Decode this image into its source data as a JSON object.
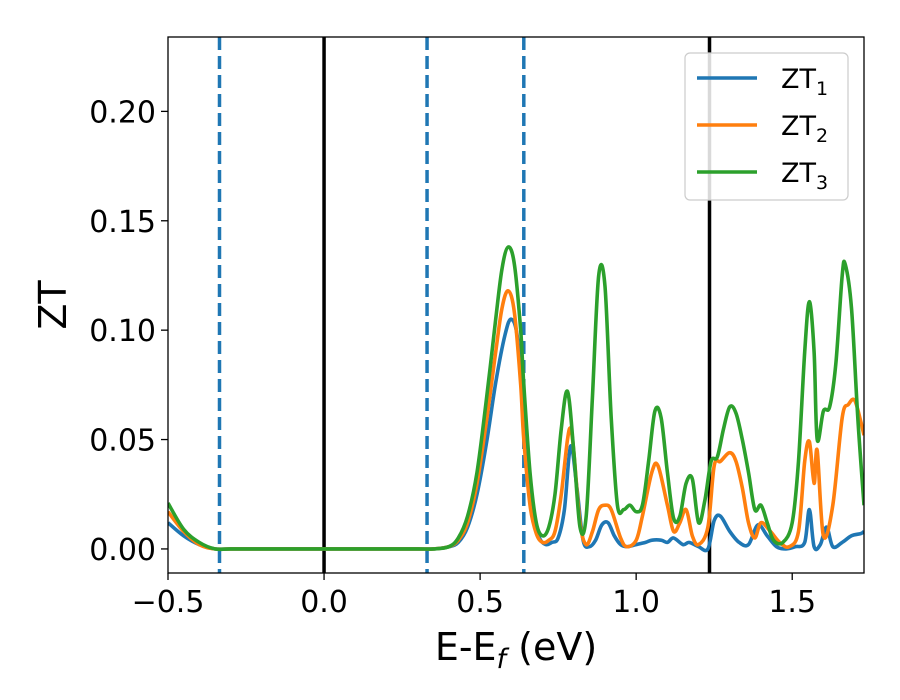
{
  "chart_data": {
    "type": "line",
    "xlabel": {
      "main": "E-E",
      "sub": "f",
      "suffix": " (eV)"
    },
    "ylabel": "ZT",
    "xlim": [
      -0.5,
      1.73
    ],
    "ylim": [
      -0.011,
      0.234
    ],
    "xticks": [
      {
        "value": -0.5,
        "label": "−0.5"
      },
      {
        "value": 0.0,
        "label": "0.0"
      },
      {
        "value": 0.5,
        "label": "0.5"
      },
      {
        "value": 1.0,
        "label": "1.0"
      },
      {
        "value": 1.5,
        "label": "1.5"
      }
    ],
    "yticks": [
      {
        "value": 0.0,
        "label": "0.00"
      },
      {
        "value": 0.05,
        "label": "0.05"
      },
      {
        "value": 0.1,
        "label": "0.10"
      },
      {
        "value": 0.15,
        "label": "0.15"
      },
      {
        "value": 0.2,
        "label": "0.20"
      }
    ],
    "grid": false,
    "legend_position": "top-right",
    "vlines": [
      {
        "x": -0.335,
        "style": "dashed",
        "color": "#1f77b4"
      },
      {
        "x": 0.0,
        "style": "solid",
        "color": "#000000"
      },
      {
        "x": 0.33,
        "style": "dashed",
        "color": "#1f77b4"
      },
      {
        "x": 0.64,
        "style": "dashed",
        "color": "#1f77b4"
      },
      {
        "x": 1.235,
        "style": "solid",
        "color": "#000000"
      }
    ],
    "series": [
      {
        "name": "ZT",
        "sub": "1",
        "color": "#1f77b4",
        "x": [
          -0.5,
          -0.45,
          -0.4,
          -0.35,
          -0.3,
          -0.2,
          -0.1,
          0.0,
          0.1,
          0.2,
          0.3,
          0.35,
          0.4,
          0.43,
          0.46,
          0.49,
          0.52,
          0.55,
          0.58,
          0.6,
          0.62,
          0.64,
          0.65,
          0.67,
          0.69,
          0.71,
          0.73,
          0.75,
          0.77,
          0.79,
          0.81,
          0.83,
          0.85,
          0.87,
          0.89,
          0.91,
          0.93,
          0.95,
          0.97,
          1.0,
          1.03,
          1.05,
          1.08,
          1.1,
          1.12,
          1.15,
          1.17,
          1.2,
          1.23,
          1.25,
          1.27,
          1.3,
          1.33,
          1.36,
          1.39,
          1.42,
          1.45,
          1.48,
          1.51,
          1.54,
          1.555,
          1.57,
          1.59,
          1.61,
          1.63,
          1.66,
          1.69,
          1.72,
          1.73
        ],
        "y": [
          0.012,
          0.006,
          0.002,
          0.0,
          0.0,
          0.0,
          0.0,
          0.0,
          0.0,
          0.0,
          0.0,
          0.0,
          0.001,
          0.003,
          0.01,
          0.025,
          0.048,
          0.076,
          0.098,
          0.105,
          0.096,
          0.06,
          0.04,
          0.015,
          0.005,
          0.002,
          0.003,
          0.005,
          0.018,
          0.047,
          0.028,
          0.004,
          0.001,
          0.004,
          0.011,
          0.012,
          0.006,
          0.002,
          0.001,
          0.002,
          0.003,
          0.004,
          0.004,
          0.003,
          0.005,
          0.002,
          0.003,
          0.001,
          0.0,
          0.013,
          0.015,
          0.008,
          0.003,
          0.002,
          0.011,
          0.006,
          0.001,
          0.0,
          0.001,
          0.003,
          0.018,
          0.001,
          0.002,
          0.01,
          0.001,
          0.003,
          0.006,
          0.007,
          0.008
        ]
      },
      {
        "name": "ZT",
        "sub": "2",
        "color": "#ff7f0e",
        "x": [
          -0.5,
          -0.45,
          -0.4,
          -0.35,
          -0.3,
          -0.2,
          -0.1,
          0.0,
          0.1,
          0.2,
          0.3,
          0.35,
          0.4,
          0.43,
          0.46,
          0.49,
          0.52,
          0.55,
          0.57,
          0.59,
          0.61,
          0.63,
          0.64,
          0.66,
          0.68,
          0.7,
          0.72,
          0.74,
          0.76,
          0.78,
          0.79,
          0.8,
          0.82,
          0.84,
          0.86,
          0.88,
          0.9,
          0.92,
          0.95,
          0.97,
          1.0,
          1.02,
          1.05,
          1.07,
          1.1,
          1.12,
          1.14,
          1.16,
          1.18,
          1.2,
          1.23,
          1.25,
          1.27,
          1.3,
          1.32,
          1.34,
          1.36,
          1.38,
          1.4,
          1.43,
          1.46,
          1.49,
          1.52,
          1.54,
          1.555,
          1.57,
          1.58,
          1.6,
          1.63,
          1.66,
          1.68,
          1.7,
          1.72,
          1.73
        ],
        "y": [
          0.017,
          0.008,
          0.002,
          0.0,
          0.0,
          0.0,
          0.0,
          0.0,
          0.0,
          0.0,
          0.0,
          0.0,
          0.001,
          0.004,
          0.012,
          0.03,
          0.058,
          0.09,
          0.11,
          0.118,
          0.108,
          0.075,
          0.05,
          0.02,
          0.007,
          0.003,
          0.004,
          0.008,
          0.025,
          0.05,
          0.055,
          0.045,
          0.012,
          0.002,
          0.008,
          0.018,
          0.02,
          0.018,
          0.005,
          0.001,
          0.004,
          0.015,
          0.035,
          0.038,
          0.02,
          0.008,
          0.012,
          0.018,
          0.006,
          0.002,
          0.01,
          0.038,
          0.04,
          0.044,
          0.04,
          0.028,
          0.012,
          0.005,
          0.012,
          0.008,
          0.003,
          0.001,
          0.008,
          0.04,
          0.049,
          0.03,
          0.045,
          0.006,
          0.02,
          0.06,
          0.066,
          0.068,
          0.058,
          0.052
        ]
      },
      {
        "name": "ZT",
        "sub": "3",
        "color": "#2ca02c",
        "x": [
          -0.5,
          -0.45,
          -0.4,
          -0.35,
          -0.3,
          -0.2,
          -0.1,
          0.0,
          0.1,
          0.2,
          0.3,
          0.35,
          0.4,
          0.43,
          0.46,
          0.49,
          0.52,
          0.55,
          0.57,
          0.59,
          0.61,
          0.63,
          0.64,
          0.66,
          0.68,
          0.7,
          0.72,
          0.74,
          0.76,
          0.78,
          0.8,
          0.82,
          0.84,
          0.86,
          0.88,
          0.9,
          0.92,
          0.94,
          0.96,
          0.98,
          1.0,
          1.02,
          1.04,
          1.06,
          1.08,
          1.1,
          1.12,
          1.14,
          1.16,
          1.18,
          1.2,
          1.22,
          1.24,
          1.26,
          1.28,
          1.3,
          1.32,
          1.34,
          1.36,
          1.38,
          1.4,
          1.42,
          1.44,
          1.47,
          1.5,
          1.52,
          1.54,
          1.555,
          1.57,
          1.58,
          1.6,
          1.62,
          1.64,
          1.66,
          1.67,
          1.69,
          1.71,
          1.73
        ],
        "y": [
          0.021,
          0.009,
          0.003,
          0.0,
          0.0,
          0.0,
          0.0,
          0.0,
          0.0,
          0.0,
          0.0,
          0.0,
          0.001,
          0.005,
          0.015,
          0.035,
          0.068,
          0.105,
          0.128,
          0.138,
          0.13,
          0.1,
          0.075,
          0.035,
          0.012,
          0.006,
          0.01,
          0.025,
          0.055,
          0.072,
          0.045,
          0.01,
          0.015,
          0.07,
          0.125,
          0.12,
          0.06,
          0.02,
          0.018,
          0.02,
          0.017,
          0.02,
          0.04,
          0.063,
          0.06,
          0.035,
          0.014,
          0.015,
          0.03,
          0.032,
          0.012,
          0.022,
          0.04,
          0.042,
          0.055,
          0.065,
          0.062,
          0.05,
          0.035,
          0.018,
          0.02,
          0.012,
          0.004,
          0.003,
          0.012,
          0.04,
          0.09,
          0.113,
          0.09,
          0.05,
          0.063,
          0.065,
          0.085,
          0.125,
          0.13,
          0.11,
          0.06,
          0.02
        ]
      }
    ]
  }
}
